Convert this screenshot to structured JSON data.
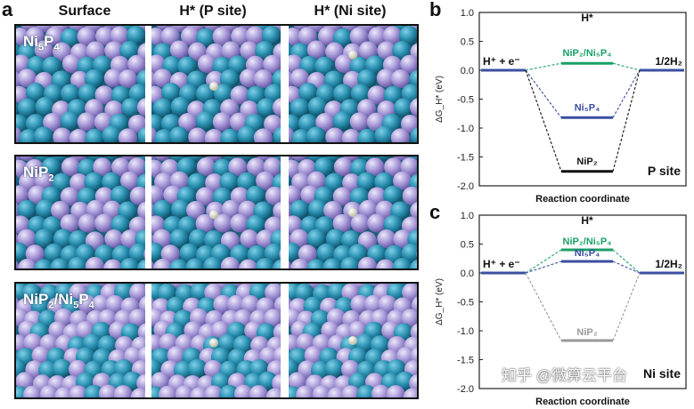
{
  "panels": {
    "a": "a",
    "b": "b",
    "c": "c"
  },
  "columns": [
    "Surface",
    "H* (P site)",
    "H* (Ni site)"
  ],
  "rows": [
    {
      "label_main": "Ni",
      "label_sub1": "5",
      "label_mid": "P",
      "label_sub2": "4",
      "label_tail": "",
      "label_sub3": "",
      "label_end": "",
      "label_sub4": ""
    },
    {
      "label_main": "NiP",
      "label_sub1": "2",
      "label_mid": "",
      "label_sub2": "",
      "label_tail": "",
      "label_sub3": "",
      "label_end": "",
      "label_sub4": ""
    },
    {
      "label_main": "NiP",
      "label_sub1": "2",
      "label_mid": "/Ni",
      "label_sub2": "5",
      "label_tail": "P",
      "label_sub3": "4",
      "label_end": "",
      "label_sub4": ""
    }
  ],
  "colors": {
    "ni_atom": "#2a8fb0",
    "p_atom": "#a89ad8",
    "h_atom": "#e8ecd8",
    "blue_level": "#3b4fa0",
    "green_level": "#1aa068",
    "black_level": "#111111",
    "gray_level": "#999999"
  },
  "chart_data": [
    {
      "type": "line",
      "panel": "b",
      "ylabel": "ΔG_H* (eV)",
      "xlabel": "Reaction coordinate",
      "ylim": [
        -2.0,
        1.0
      ],
      "yticks": [
        "1.0",
        "0.5",
        "0.0",
        "-0.5",
        "-1.0",
        "-1.5",
        "-2.0"
      ],
      "yvalues": [
        1.0,
        0.5,
        0.0,
        -0.5,
        -1.0,
        -1.5,
        -2.0
      ],
      "left_label": "H⁺ + e⁻",
      "right_label": "1/2H₂",
      "center_label": "H*",
      "site_label": "P site",
      "states": [
        "H⁺ + e⁻",
        "H*",
        "1/2H₂"
      ],
      "series": [
        {
          "name": "NiP₂/Ni₅P₄",
          "values": [
            0.0,
            0.12,
            0.0
          ],
          "color": "#1aa068"
        },
        {
          "name": "Ni₅P₄",
          "values": [
            0.0,
            -0.82,
            0.0
          ],
          "color": "#3b4fa0"
        },
        {
          "name": "NiP₂",
          "values": [
            0.0,
            -1.75,
            0.0
          ],
          "color": "#111111"
        }
      ]
    },
    {
      "type": "line",
      "panel": "c",
      "ylabel": "ΔG_H* (eV)",
      "xlabel": "Reaction coordinate",
      "ylim": [
        -2.0,
        1.0
      ],
      "yticks": [
        "1.0",
        "0.5",
        "0.0",
        "-0.5",
        "-1.0",
        "-1.5",
        "-2.0"
      ],
      "yvalues": [
        1.0,
        0.5,
        0.0,
        -0.5,
        -1.0,
        -1.5,
        -2.0
      ],
      "left_label": "H⁺ + e⁻",
      "right_label": "1/2H₂",
      "center_label": "H*",
      "site_label": "Ni site",
      "states": [
        "H⁺ + e⁻",
        "H*",
        "1/2H₂"
      ],
      "series": [
        {
          "name": "NiP₂/Ni₅P₄",
          "values": [
            0.0,
            0.4,
            0.0
          ],
          "color": "#1aa068"
        },
        {
          "name": "Ni₅P₄",
          "values": [
            0.0,
            0.2,
            0.0
          ],
          "color": "#3b4fa0"
        },
        {
          "name": "NiP₂",
          "values": [
            0.0,
            -1.17,
            0.0
          ],
          "color": "#999999"
        }
      ]
    }
  ],
  "watermark": "知乎 @微算云平台"
}
